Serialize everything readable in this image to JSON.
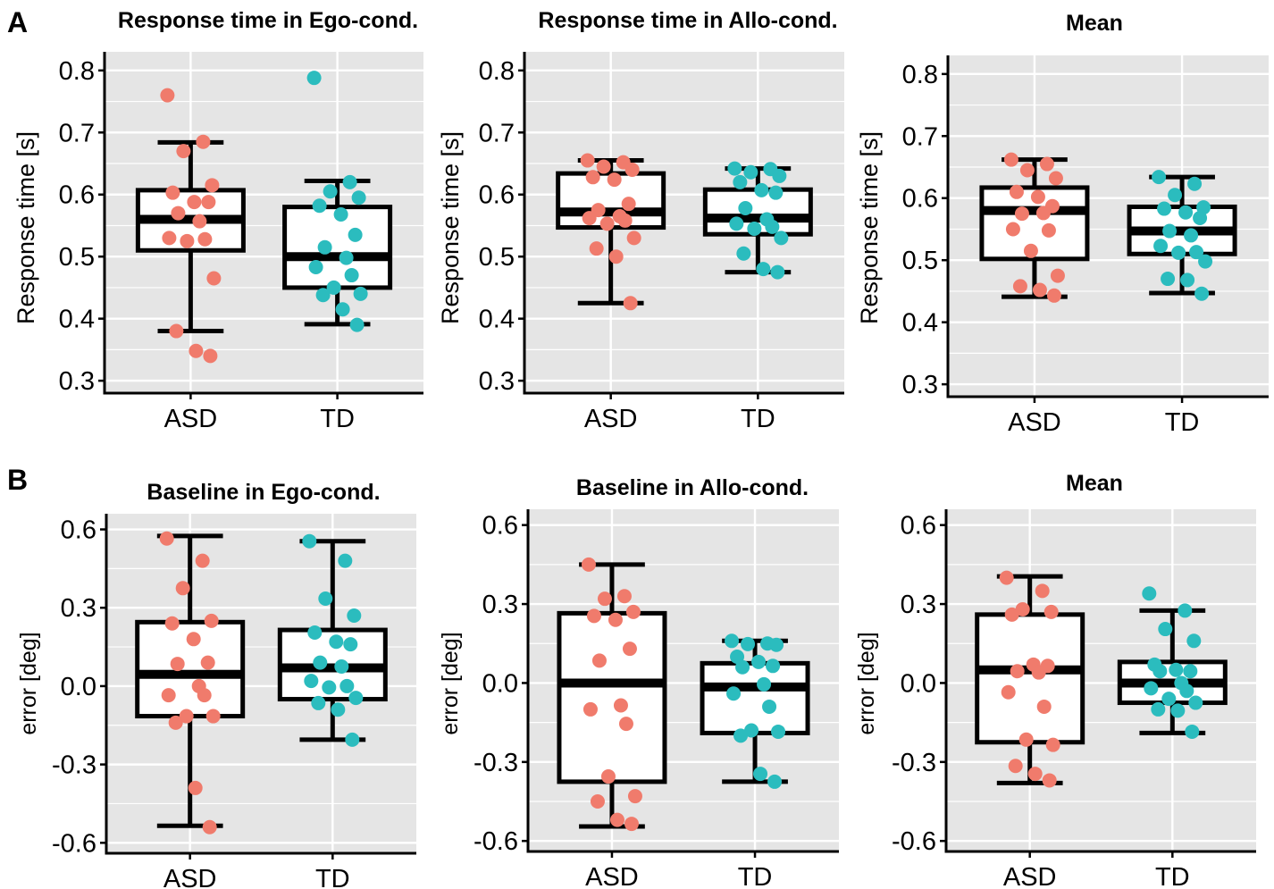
{
  "panel_labels": [
    "A",
    "B"
  ],
  "colors": {
    "ASD": "#f07b6c",
    "TD": "#2bbcbe",
    "panel_bg": "#e5e5e5",
    "grid": "#ffffff"
  },
  "chart_data": [
    {
      "type": "box",
      "title": "Response time in Ego-cond.",
      "ylabel": "Response time [s]",
      "xlabel": "",
      "categories": [
        "ASD",
        "TD"
      ],
      "ylim": [
        0.28,
        0.83
      ],
      "yticks": [
        0.3,
        0.4,
        0.5,
        0.6,
        0.7,
        0.8
      ],
      "ytick_labels": [
        "0.3",
        "0.4",
        "0.5",
        "0.6",
        "0.7",
        "0.8"
      ],
      "boxes": [
        {
          "group": "ASD",
          "min": 0.38,
          "q1": 0.51,
          "median": 0.56,
          "q3": 0.607,
          "max": 0.684
        },
        {
          "group": "TD",
          "min": 0.391,
          "q1": 0.45,
          "median": 0.5,
          "q3": 0.58,
          "max": 0.622
        }
      ],
      "points": [
        {
          "group": "ASD",
          "values": [
            0.76,
            0.685,
            0.67,
            0.615,
            0.603,
            0.588,
            0.588,
            0.57,
            0.557,
            0.53,
            0.528,
            0.525,
            0.465,
            0.38,
            0.348,
            0.34
          ]
        },
        {
          "group": "TD",
          "values": [
            0.788,
            0.62,
            0.605,
            0.595,
            0.582,
            0.568,
            0.535,
            0.515,
            0.498,
            0.483,
            0.47,
            0.45,
            0.44,
            0.438,
            0.415,
            0.39
          ]
        }
      ]
    },
    {
      "type": "box",
      "title": "Response time in Allo-cond.",
      "ylabel": "Response time [s]",
      "xlabel": "",
      "categories": [
        "ASD",
        "TD"
      ],
      "ylim": [
        0.28,
        0.83
      ],
      "yticks": [
        0.3,
        0.4,
        0.5,
        0.6,
        0.7,
        0.8
      ],
      "ytick_labels": [
        "0.3",
        "0.4",
        "0.5",
        "0.6",
        "0.7",
        "0.8"
      ],
      "boxes": [
        {
          "group": "ASD",
          "min": 0.425,
          "q1": 0.547,
          "median": 0.572,
          "q3": 0.634,
          "max": 0.655
        },
        {
          "group": "TD",
          "min": 0.475,
          "q1": 0.536,
          "median": 0.562,
          "q3": 0.608,
          "max": 0.642
        }
      ],
      "points": [
        {
          "group": "ASD",
          "values": [
            0.655,
            0.652,
            0.645,
            0.64,
            0.628,
            0.624,
            0.585,
            0.575,
            0.565,
            0.562,
            0.558,
            0.553,
            0.53,
            0.513,
            0.5,
            0.425
          ]
        },
        {
          "group": "TD",
          "values": [
            0.642,
            0.641,
            0.636,
            0.63,
            0.62,
            0.607,
            0.603,
            0.578,
            0.56,
            0.553,
            0.548,
            0.545,
            0.53,
            0.505,
            0.48,
            0.475
          ]
        }
      ]
    },
    {
      "type": "box",
      "title": "Mean",
      "ylabel": "Response time [s]",
      "xlabel": "",
      "categories": [
        "ASD",
        "TD"
      ],
      "ylim": [
        0.28,
        0.83
      ],
      "yticks": [
        0.3,
        0.4,
        0.5,
        0.6,
        0.7,
        0.8
      ],
      "ytick_labels": [
        "0.3",
        "0.4",
        "0.5",
        "0.6",
        "0.7",
        "0.8"
      ],
      "boxes": [
        {
          "group": "ASD",
          "min": 0.441,
          "q1": 0.502,
          "median": 0.58,
          "q3": 0.617,
          "max": 0.662
        },
        {
          "group": "TD",
          "min": 0.447,
          "q1": 0.51,
          "median": 0.547,
          "q3": 0.586,
          "max": 0.634
        }
      ],
      "points": [
        {
          "group": "ASD",
          "values": [
            0.662,
            0.655,
            0.645,
            0.632,
            0.61,
            0.602,
            0.587,
            0.575,
            0.576,
            0.55,
            0.548,
            0.515,
            0.475,
            0.458,
            0.452,
            0.443
          ]
        },
        {
          "group": "TD",
          "values": [
            0.634,
            0.623,
            0.605,
            0.585,
            0.583,
            0.577,
            0.568,
            0.547,
            0.54,
            0.523,
            0.513,
            0.512,
            0.498,
            0.47,
            0.468,
            0.446
          ]
        }
      ]
    },
    {
      "type": "box",
      "title": "Baseline in Ego-cond.",
      "ylabel": "error [deg]",
      "xlabel": "",
      "categories": [
        "ASD",
        "TD"
      ],
      "ylim": [
        -0.64,
        0.66
      ],
      "yticks": [
        -0.6,
        -0.3,
        0.0,
        0.3,
        0.6
      ],
      "ytick_labels": [
        "-0.6",
        "-0.3",
        "0.0",
        "0.3",
        "0.6"
      ],
      "boxes": [
        {
          "group": "ASD",
          "min": -0.535,
          "q1": -0.115,
          "median": 0.045,
          "q3": 0.245,
          "max": 0.575
        },
        {
          "group": "TD",
          "min": -0.205,
          "q1": -0.05,
          "median": 0.07,
          "q3": 0.215,
          "max": 0.555
        }
      ],
      "points": [
        {
          "group": "ASD",
          "values": [
            0.565,
            0.48,
            0.375,
            0.25,
            0.24,
            0.18,
            0.09,
            0.085,
            0.0,
            -0.035,
            -0.035,
            -0.115,
            -0.115,
            -0.14,
            -0.39,
            -0.54
          ]
        },
        {
          "group": "TD",
          "values": [
            0.555,
            0.48,
            0.335,
            0.27,
            0.205,
            0.17,
            0.16,
            0.09,
            0.075,
            0.02,
            0.0,
            -0.005,
            -0.045,
            -0.065,
            -0.09,
            -0.205
          ]
        }
      ]
    },
    {
      "type": "box",
      "title": "Baseline in Allo-cond.",
      "ylabel": "error [deg]",
      "xlabel": "",
      "categories": [
        "ASD",
        "TD"
      ],
      "ylim": [
        -0.64,
        0.66
      ],
      "yticks": [
        -0.6,
        -0.3,
        0.0,
        0.3,
        0.6
      ],
      "ytick_labels": [
        "-0.6",
        "-0.3",
        "0.0",
        "0.3",
        "0.6"
      ],
      "boxes": [
        {
          "group": "ASD",
          "min": -0.545,
          "q1": -0.375,
          "median": 0.0,
          "q3": 0.265,
          "max": 0.45
        },
        {
          "group": "TD",
          "min": -0.375,
          "q1": -0.19,
          "median": -0.015,
          "q3": 0.075,
          "max": 0.16
        }
      ],
      "points": [
        {
          "group": "ASD",
          "values": [
            0.45,
            0.33,
            0.32,
            0.27,
            0.255,
            0.24,
            0.13,
            0.085,
            -0.085,
            -0.1,
            -0.155,
            -0.355,
            -0.43,
            -0.45,
            -0.52,
            -0.535
          ]
        },
        {
          "group": "TD",
          "values": [
            0.16,
            0.15,
            0.148,
            0.145,
            0.1,
            0.08,
            0.065,
            0.06,
            -0.005,
            -0.04,
            -0.09,
            -0.18,
            -0.185,
            -0.2,
            -0.345,
            -0.375
          ]
        }
      ]
    },
    {
      "type": "box",
      "title": "Mean",
      "ylabel": "error [deg]",
      "xlabel": "",
      "categories": [
        "ASD",
        "TD"
      ],
      "ylim": [
        -0.64,
        0.66
      ],
      "yticks": [
        -0.6,
        -0.3,
        0.0,
        0.3,
        0.6
      ],
      "ytick_labels": [
        "-0.6",
        "-0.3",
        "0.0",
        "0.3",
        "0.6"
      ],
      "boxes": [
        {
          "group": "ASD",
          "min": -0.38,
          "q1": -0.225,
          "median": 0.05,
          "q3": 0.26,
          "max": 0.405
        },
        {
          "group": "TD",
          "min": -0.19,
          "q1": -0.075,
          "median": 0.0,
          "q3": 0.08,
          "max": 0.275
        }
      ],
      "points": [
        {
          "group": "ASD",
          "values": [
            0.4,
            0.35,
            0.28,
            0.27,
            0.26,
            0.07,
            0.065,
            0.045,
            0.04,
            -0.035,
            -0.09,
            -0.215,
            -0.235,
            -0.315,
            -0.345,
            -0.37
          ]
        },
        {
          "group": "TD",
          "values": [
            0.34,
            0.275,
            0.205,
            0.16,
            0.07,
            0.05,
            0.045,
            0.045,
            0.0,
            -0.02,
            -0.03,
            -0.06,
            -0.075,
            -0.1,
            -0.105,
            -0.185
          ]
        }
      ]
    }
  ]
}
